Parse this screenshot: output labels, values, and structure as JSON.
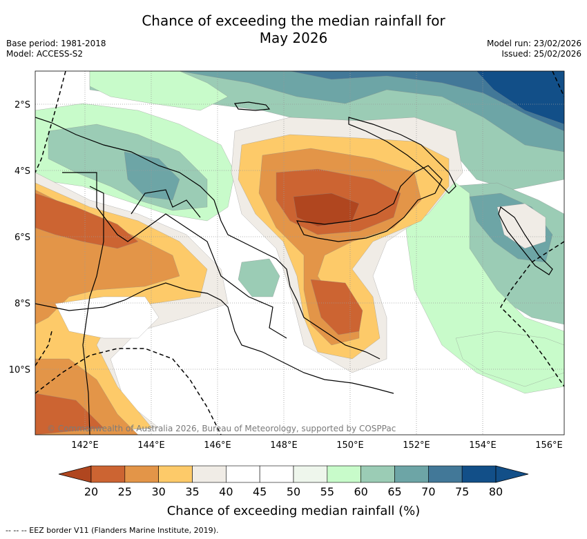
{
  "title_line1": "Chance of exceeding the median rainfall for",
  "title_line2": "May 2026",
  "base_period": "Base period: 1981-2018",
  "model": "Model: ACCESS-S2",
  "model_run": "Model run: 23/02/2026",
  "issued": "Issued: 25/02/2026",
  "copyright": "© Commonwealth of Australia 2026, Bureau of Meteorology, supported by COSPPac",
  "lon_labels": [
    "142°E",
    "144°E",
    "146°E",
    "148°E",
    "150°E",
    "152°E",
    "154°E",
    "156°E"
  ],
  "lat_labels": [
    "2°S",
    "4°S",
    "6°S",
    "8°S",
    "10°S"
  ],
  "colorbar": {
    "ticks": [
      "20",
      "25",
      "30",
      "35",
      "40",
      "45",
      "50",
      "55",
      "60",
      "65",
      "70",
      "75",
      "80"
    ],
    "colors": [
      "#b0461f",
      "#cc6432",
      "#e39548",
      "#fdca69",
      "#f0ece6",
      "#ffffff",
      "#ffffff",
      "#eef6ec",
      "#c8fbca",
      "#9bccb5",
      "#6da5a6",
      "#427898",
      "#124f88"
    ],
    "title": "Chance of exceeding median rainfall (%)"
  },
  "footnote": "-- -- -- EEZ border V11 (Flanders Marine Institute, 2019).",
  "region_colors": {
    "dry_strong": "#b0461f",
    "dry": "#cc6432",
    "dry_mild": "#e39548",
    "dry_light": "#fdca69",
    "near_dry": "#f0ece6",
    "neutral": "#ffffff",
    "near_wet": "#eef6ec",
    "wet_light": "#c8fbca",
    "wet": "#9bccb5",
    "wet_mid": "#6da5a6",
    "wet_strong": "#427898",
    "wet_max": "#124f88"
  }
}
